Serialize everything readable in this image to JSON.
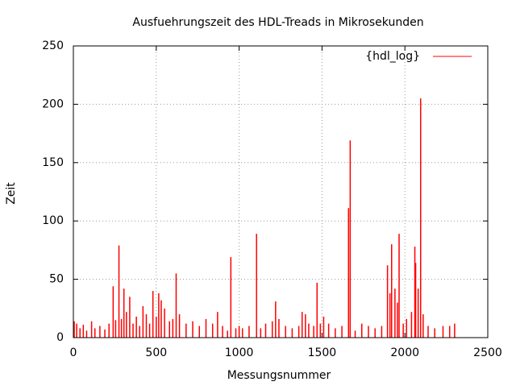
{
  "chart_data": {
    "type": "impulse",
    "title": "Ausfuehrungszeit des HDL-Treads in Mikrosekunden",
    "x_label": "Messungsnummer",
    "y_label": "Zeit",
    "xlim": [
      0,
      2500
    ],
    "xticks": [
      0,
      500,
      1000,
      1500,
      2000,
      2500
    ],
    "ylim": [
      0,
      250
    ],
    "yticks": [
      0,
      50,
      100,
      150,
      200,
      250
    ],
    "grid": true,
    "legend": "top-right",
    "series": [
      {
        "name": "{hdl_log}",
        "color": "#ff0000",
        "x": [
          5,
          20,
          40,
          60,
          80,
          110,
          130,
          160,
          190,
          215,
          240,
          255,
          275,
          290,
          305,
          320,
          340,
          360,
          380,
          400,
          420,
          440,
          460,
          480,
          500,
          515,
          530,
          550,
          580,
          600,
          620,
          640,
          680,
          720,
          760,
          800,
          840,
          870,
          900,
          930,
          950,
          980,
          1000,
          1020,
          1060,
          1105,
          1130,
          1160,
          1200,
          1220,
          1240,
          1280,
          1320,
          1360,
          1380,
          1400,
          1420,
          1450,
          1470,
          1490,
          1510,
          1540,
          1580,
          1620,
          1660,
          1670,
          1700,
          1740,
          1780,
          1820,
          1860,
          1895,
          1910,
          1920,
          1940,
          1955,
          1965,
          1990,
          2010,
          2040,
          2060,
          2065,
          2080,
          2095,
          2110,
          2140,
          2180,
          2230,
          2270,
          2300
        ],
        "values": [
          14,
          12,
          8,
          11,
          6,
          14,
          8,
          10,
          7,
          12,
          44,
          15,
          79,
          16,
          42,
          22,
          35,
          12,
          18,
          10,
          27,
          20,
          12,
          40,
          18,
          38,
          32,
          25,
          14,
          16,
          55,
          20,
          12,
          14,
          10,
          16,
          12,
          22,
          10,
          6,
          69,
          8,
          10,
          8,
          10,
          89,
          8,
          12,
          14,
          31,
          16,
          10,
          8,
          10,
          22,
          20,
          12,
          10,
          47,
          12,
          18,
          12,
          8,
          10,
          111,
          169,
          6,
          12,
          10,
          8,
          10,
          62,
          38,
          80,
          42,
          30,
          89,
          12,
          16,
          22,
          78,
          64,
          42,
          205,
          20,
          10,
          8,
          10,
          10,
          12
        ]
      }
    ]
  }
}
